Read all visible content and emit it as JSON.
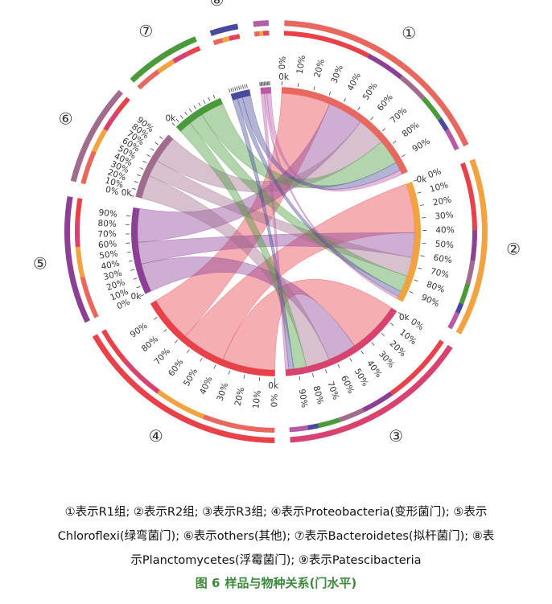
{
  "chart_data": {
    "type": "chord",
    "title": "样品与物种关系(门水平)",
    "figure_label": "图 6",
    "groups": [
      {
        "number": "①",
        "name": "R1组",
        "kind": "sample",
        "color": "#e8685f",
        "weight": 18
      },
      {
        "number": "②",
        "name": "R2组",
        "kind": "sample",
        "color": "#f2a340",
        "weight": 14
      },
      {
        "number": "③",
        "name": "R3组",
        "kind": "sample",
        "color": "#d9426f",
        "weight": 15
      },
      {
        "number": "④",
        "name": "Proteobacteria(变形菌门)",
        "kind": "phylum",
        "color": "#e8414a",
        "weight": 17
      },
      {
        "number": "⑤",
        "name": "Chloroflexi(绿弯菌门)",
        "kind": "phylum",
        "color": "#8b3f95",
        "weight": 10
      },
      {
        "number": "⑥",
        "name": "others(其他)",
        "kind": "phylum",
        "color": "#a06b8c",
        "weight": 8
      },
      {
        "number": "⑦",
        "name": "Bacteroidetes(拟杆菌门)",
        "kind": "phylum",
        "color": "#4a9a3c",
        "weight": 6
      },
      {
        "number": "⑧",
        "name": "Planctomycetes(浮霉菌门)",
        "kind": "phylum",
        "color": "#4a4a9c",
        "weight": 2.2
      },
      {
        "number": "⑨",
        "name": "Patescibacteria",
        "kind": "phylum",
        "color": "#b85aa8",
        "weight": 1.2
      }
    ],
    "links": [
      {
        "source": "R1组",
        "target": "Proteobacteria(变形菌门)",
        "value": 5.5
      },
      {
        "source": "R1组",
        "target": "Chloroflexi(绿弯菌门)",
        "value": 4.0
      },
      {
        "source": "R1组",
        "target": "others(其他)",
        "value": 3.2
      },
      {
        "source": "R1组",
        "target": "Bacteroidetes(拟杆菌门)",
        "value": 2.8
      },
      {
        "source": "R1组",
        "target": "Planctomycetes(浮霉菌门)",
        "value": 1.0
      },
      {
        "source": "R1组",
        "target": "Patescibacteria",
        "value": 0.5
      },
      {
        "source": "R2组",
        "target": "Proteobacteria(变形菌门)",
        "value": 5.2
      },
      {
        "source": "R2组",
        "target": "Chloroflexi(绿弯菌门)",
        "value": 2.6
      },
      {
        "source": "R2组",
        "target": "others(其他)",
        "value": 2.0
      },
      {
        "source": "R2组",
        "target": "Bacteroidetes(拟杆菌门)",
        "value": 1.7
      },
      {
        "source": "R2组",
        "target": "Planctomycetes(浮霉菌门)",
        "value": 0.6
      },
      {
        "source": "R2组",
        "target": "Patescibacteria",
        "value": 0.3
      },
      {
        "source": "R3组",
        "target": "Proteobacteria(变形菌门)",
        "value": 6.3
      },
      {
        "source": "R3组",
        "target": "Chloroflexi(绿弯菌门)",
        "value": 3.4
      },
      {
        "source": "R3组",
        "target": "others(其他)",
        "value": 2.8
      },
      {
        "source": "R3组",
        "target": "Bacteroidetes(拟杆菌门)",
        "value": 1.5
      },
      {
        "source": "R3组",
        "target": "Planctomycetes(浮霉菌门)",
        "value": 0.6
      },
      {
        "source": "R3组",
        "target": "Patescibacteria",
        "value": 0.4
      }
    ],
    "tick_labels": [
      "0%",
      "10%",
      "20%",
      "30%",
      "40%",
      "50%",
      "60%",
      "70%",
      "80%",
      "90%"
    ],
    "axis_start_label": "0k"
  },
  "legend": {
    "lines": [
      "①表示R1组; ②表示R2组; ③表示R3组; ④表示Proteobacteria(变形菌门); ⑤表示",
      "Chloroflexi(绿弯菌门); ⑥表示others(其他); ⑦表示Bacteroidetes(拟杆菌门); ⑧表",
      "示Planctomycetes(浮霉菌门); ⑨表示Patescibacteria"
    ]
  },
  "caption": {
    "label": "图 6",
    "text": "样品与物种关系(门水平)"
  }
}
